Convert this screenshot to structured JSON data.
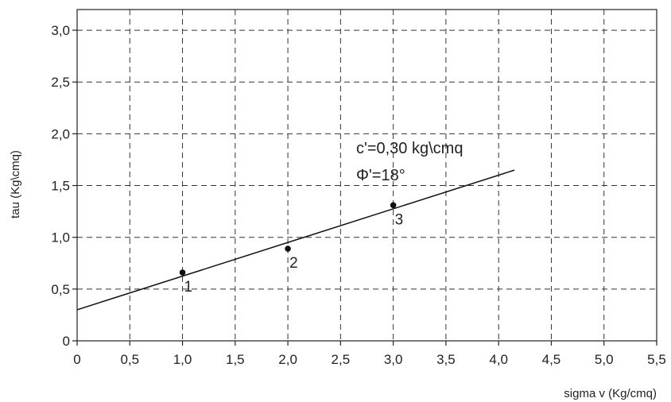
{
  "chart_data": {
    "type": "scatter",
    "xlabel": "sigma v (Kg/cmq)",
    "ylabel": "tau (Kg\\cmq)",
    "xlim": [
      0,
      5.5
    ],
    "ylim": [
      0,
      3.2
    ],
    "xticks": [
      "0",
      "0,5",
      "1,0",
      "1,5",
      "2,0",
      "2,5",
      "3,0",
      "3,5",
      "4,0",
      "4,5",
      "5,0",
      "5,5"
    ],
    "yticks": [
      "0",
      "0,5",
      "1,0",
      "1,5",
      "2,0",
      "2,5",
      "3,0"
    ],
    "grid": true,
    "points": [
      {
        "label": "1",
        "x": 1.0,
        "y": 0.66
      },
      {
        "label": "2",
        "x": 2.0,
        "y": 0.89
      },
      {
        "label": "3",
        "x": 3.0,
        "y": 1.31
      }
    ],
    "fit_line": {
      "intercept": 0.3,
      "slope": 0.325,
      "x_start": 0,
      "x_end": 4.15
    },
    "annotations": [
      "c'=0,30 kg\\cmq",
      "Φ'=18°"
    ]
  }
}
